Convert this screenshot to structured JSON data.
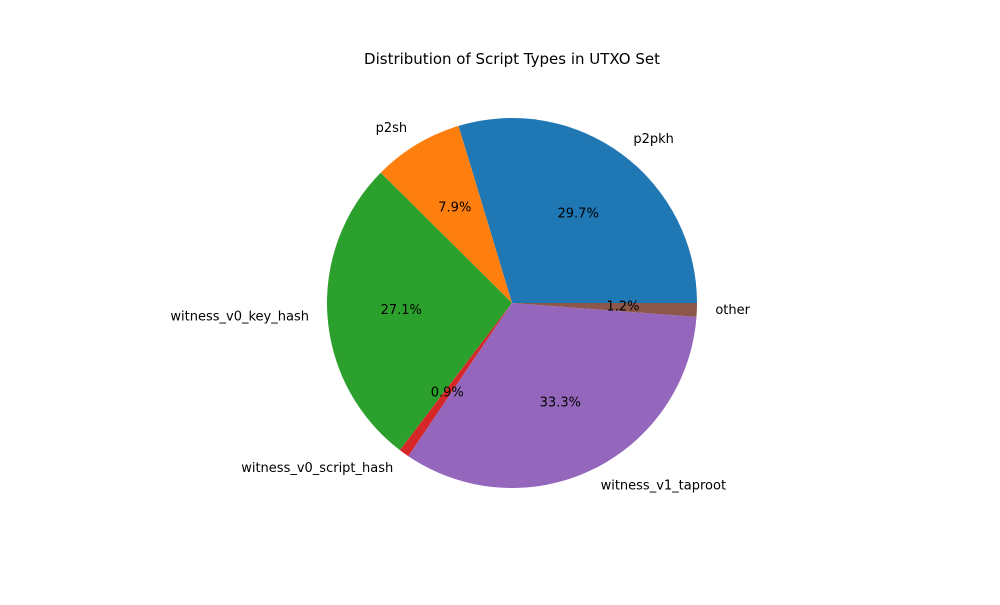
{
  "chart_data": {
    "type": "pie",
    "title": "Distribution of Script Types in UTXO Set",
    "start_angle_deg": 0,
    "direction": "counterclockwise",
    "slices": [
      {
        "label": "p2pkh",
        "value": 29.7,
        "pct_label": "29.7%",
        "color": "#1f77b4"
      },
      {
        "label": "p2sh",
        "value": 7.9,
        "pct_label": "7.9%",
        "color": "#ff7f0e"
      },
      {
        "label": "witness_v0_key_hash",
        "value": 27.1,
        "pct_label": "27.1%",
        "color": "#2ca02c"
      },
      {
        "label": "witness_v0_script_hash",
        "value": 0.9,
        "pct_label": "0.9%",
        "color": "#d62728"
      },
      {
        "label": "witness_v1_taproot",
        "value": 33.3,
        "pct_label": "33.3%",
        "color": "#9467bd"
      },
      {
        "label": "other",
        "value": 1.2,
        "pct_label": "1.2%",
        "color": "#8c564b"
      }
    ]
  }
}
